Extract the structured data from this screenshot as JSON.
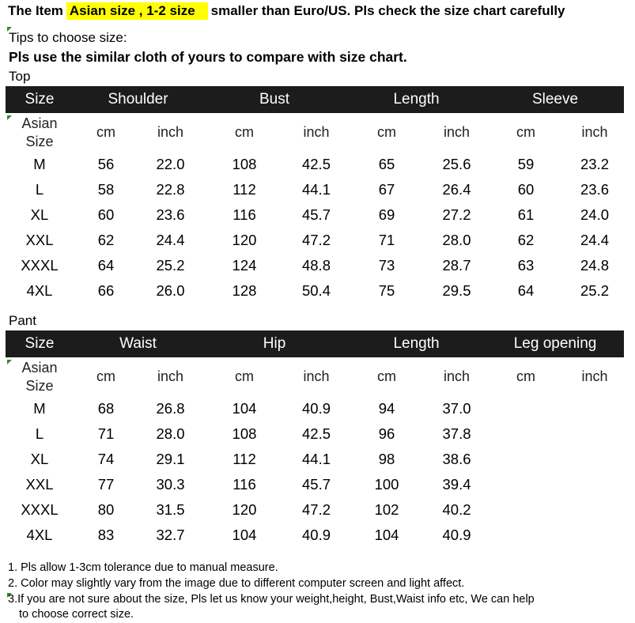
{
  "headline": {
    "prefix": "The Item",
    "highlight": "Asian size , 1-2 size",
    "suffix": "smaller than Euro/US. Pls check the size chart carefully",
    "highlight_color": "#ffff00"
  },
  "tips": {
    "title": "Tips to choose size:",
    "text": "Pls use the similar cloth of yours to compare with size chart."
  },
  "top": {
    "label": "Top",
    "size_header": "Size",
    "groups": [
      "Shoulder",
      "Bust",
      "Length",
      "Sleeve"
    ],
    "asian_line1": "Asian",
    "asian_line2": "Size",
    "units": [
      "cm",
      "inch",
      "cm",
      "inch",
      "cm",
      "inch",
      "cm",
      "inch"
    ],
    "rows": [
      [
        "M",
        "56",
        "22.0",
        "108",
        "42.5",
        "65",
        "25.6",
        "59",
        "23.2"
      ],
      [
        "L",
        "58",
        "22.8",
        "112",
        "44.1",
        "67",
        "26.4",
        "60",
        "23.6"
      ],
      [
        "XL",
        "60",
        "23.6",
        "116",
        "45.7",
        "69",
        "27.2",
        "61",
        "24.0"
      ],
      [
        "XXL",
        "62",
        "24.4",
        "120",
        "47.2",
        "71",
        "28.0",
        "62",
        "24.4"
      ],
      [
        "XXXL",
        "64",
        "25.2",
        "124",
        "48.8",
        "73",
        "28.7",
        "63",
        "24.8"
      ],
      [
        "4XL",
        "66",
        "26.0",
        "128",
        "50.4",
        "75",
        "29.5",
        "64",
        "25.2"
      ]
    ]
  },
  "pant": {
    "label": "Pant",
    "size_header": "Size",
    "groups": [
      "Waist",
      "Hip",
      "Length",
      "Leg opening"
    ],
    "asian_line1": "Asian",
    "asian_line2": "Size",
    "units": [
      "cm",
      "inch",
      "cm",
      "inch",
      "cm",
      "inch",
      "cm",
      "inch"
    ],
    "rows": [
      [
        "M",
        "68",
        "26.8",
        "104",
        "40.9",
        "94",
        "37.0",
        "",
        ""
      ],
      [
        "L",
        "71",
        "28.0",
        "108",
        "42.5",
        "96",
        "37.8",
        "",
        ""
      ],
      [
        "XL",
        "74",
        "29.1",
        "112",
        "44.1",
        "98",
        "38.6",
        "",
        ""
      ],
      [
        "XXL",
        "77",
        "30.3",
        "116",
        "45.7",
        "100",
        "39.4",
        "",
        ""
      ],
      [
        "XXXL",
        "80",
        "31.5",
        "120",
        "47.2",
        "102",
        "40.2",
        "",
        ""
      ],
      [
        "4XL",
        "83",
        "32.7",
        "104",
        "40.9",
        "104",
        "40.9",
        "",
        ""
      ]
    ]
  },
  "notes": [
    "1. Pls allow 1-3cm tolerance due to manual measure.",
    "2. Color may slightly vary from the image due to different computer screen and light affect.",
    "3.If you are not sure about the size, Pls let us know your weight,height, Bust,Waist info etc, We can help",
    "to choose correct size."
  ]
}
